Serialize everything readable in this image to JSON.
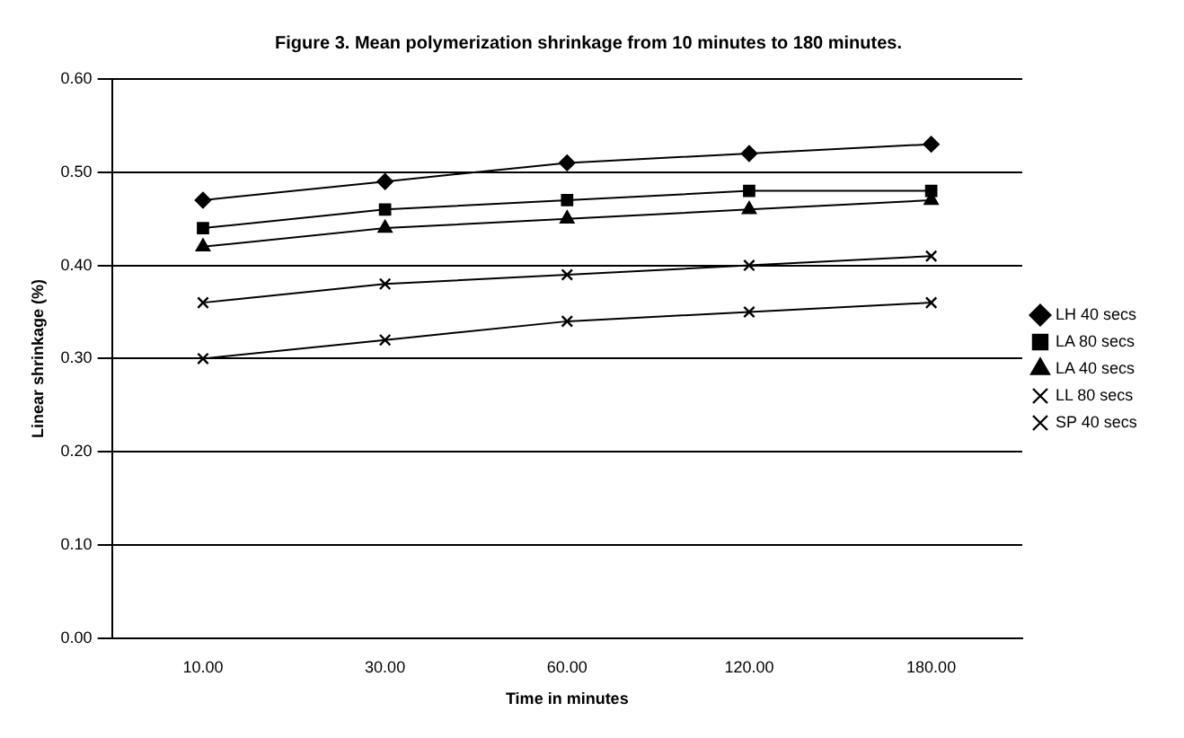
{
  "chart_data": {
    "type": "line",
    "title": "Figure 3. Mean polymerization shrinkage from 10 minutes to 180 minutes.",
    "xlabel": "Time in minutes",
    "ylabel": "Linear shrinkage (%)",
    "categories": [
      "10.00",
      "30.00",
      "60.00",
      "120.00",
      "180.00"
    ],
    "series": [
      {
        "name": "LH 40 secs",
        "color": "#000000",
        "marker": "diamond",
        "values": [
          0.47,
          0.49,
          0.51,
          0.52,
          0.53
        ]
      },
      {
        "name": "LA 80 secs",
        "color": "#000000",
        "marker": "square",
        "values": [
          0.44,
          0.46,
          0.47,
          0.48,
          0.48
        ]
      },
      {
        "name": "LA 40 secs",
        "color": "#000000",
        "marker": "triangle",
        "values": [
          0.42,
          0.44,
          0.45,
          0.46,
          0.47
        ]
      },
      {
        "name": "LL 80 secs",
        "color": "#000000",
        "marker": "cross",
        "values": [
          0.36,
          0.38,
          0.39,
          0.4,
          0.41
        ]
      },
      {
        "name": "SP 40 secs",
        "color": "#000000",
        "marker": "cross",
        "values": [
          0.3,
          0.32,
          0.34,
          0.35,
          0.36
        ]
      }
    ],
    "ylim": [
      0,
      0.6
    ],
    "yticks": [
      {
        "value": 0,
        "label": "0.00"
      },
      {
        "value": 0.1,
        "label": "0.10"
      },
      {
        "value": 0.2,
        "label": "0.20"
      },
      {
        "value": 0.3,
        "label": "0.30"
      },
      {
        "value": 0.4,
        "label": "0.40"
      },
      {
        "value": 0.5,
        "label": "0.50"
      },
      {
        "value": 0.6,
        "label": "0.60"
      }
    ],
    "grid": "y",
    "legend": "right",
    "line_style": "solid"
  }
}
